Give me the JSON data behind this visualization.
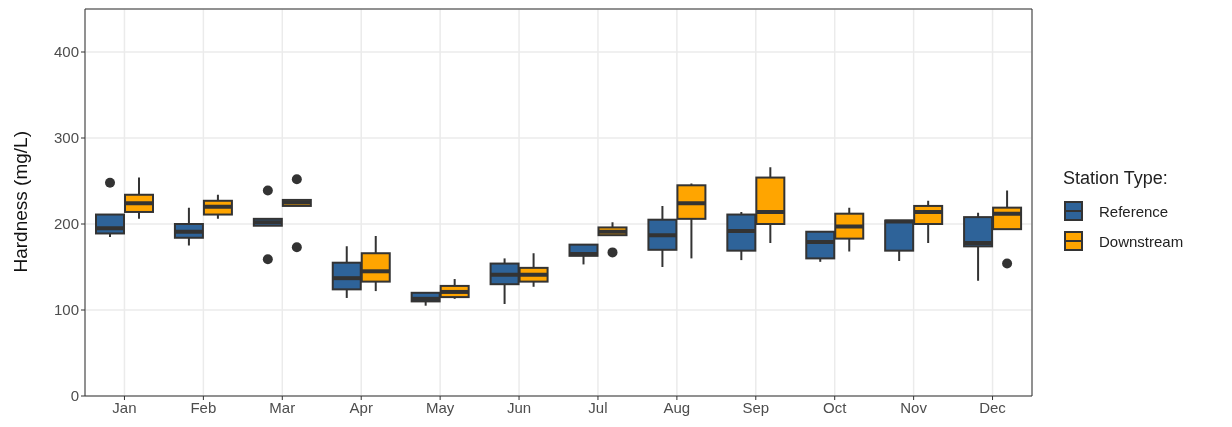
{
  "chart_data": {
    "type": "box",
    "ylabel": "Hardness (mg/L)",
    "legend_title": "Station Type:",
    "legend": "right",
    "grid": true,
    "categories": [
      "Jan",
      "Feb",
      "Mar",
      "Apr",
      "May",
      "Jun",
      "Jul",
      "Aug",
      "Sep",
      "Oct",
      "Nov",
      "Dec"
    ],
    "ylim": [
      0,
      450
    ],
    "yticks": [
      0,
      100,
      200,
      300,
      400
    ],
    "series": [
      {
        "name": "Reference",
        "color": "#2e6399",
        "boxes": [
          {
            "low": 185,
            "q1": 189,
            "median": 195,
            "q3": 211,
            "high": 211,
            "outliers": [
              248
            ]
          },
          {
            "low": 175,
            "q1": 184,
            "median": 191,
            "q3": 200,
            "high": 219
          },
          {
            "low": 198,
            "q1": 198,
            "median": 202,
            "q3": 206,
            "high": 206,
            "outliers": [
              239,
              159
            ]
          },
          {
            "low": 114,
            "q1": 124,
            "median": 137,
            "q3": 155,
            "high": 174
          },
          {
            "low": 105,
            "q1": 110,
            "median": 113,
            "q3": 120,
            "high": 120
          },
          {
            "low": 107,
            "q1": 130,
            "median": 141,
            "q3": 154,
            "high": 160
          },
          {
            "low": 153,
            "q1": 163,
            "median": 165,
            "q3": 176,
            "high": 176
          },
          {
            "low": 150,
            "q1": 170,
            "median": 187,
            "q3": 205,
            "high": 221
          },
          {
            "low": 158,
            "q1": 169,
            "median": 192,
            "q3": 211,
            "high": 214
          },
          {
            "low": 156,
            "q1": 160,
            "median": 179,
            "q3": 191,
            "high": 191
          },
          {
            "low": 157,
            "q1": 169,
            "median": 203,
            "q3": 204,
            "high": 204
          },
          {
            "low": 134,
            "q1": 174,
            "median": 178,
            "q3": 208,
            "high": 213
          }
        ]
      },
      {
        "name": "Downstream",
        "color": "#ffa500",
        "boxes": [
          {
            "low": 206,
            "q1": 214,
            "median": 224,
            "q3": 234,
            "high": 254
          },
          {
            "low": 206,
            "q1": 211,
            "median": 220,
            "q3": 227,
            "high": 234
          },
          {
            "low": 221,
            "q1": 221,
            "median": 225,
            "q3": 228,
            "high": 228,
            "outliers": [
              252,
              173
            ]
          },
          {
            "low": 122,
            "q1": 133,
            "median": 145,
            "q3": 166,
            "high": 186
          },
          {
            "low": 113,
            "q1": 115,
            "median": 121,
            "q3": 128,
            "high": 136
          },
          {
            "low": 127,
            "q1": 133,
            "median": 141,
            "q3": 149,
            "high": 166
          },
          {
            "low": 187,
            "q1": 187,
            "median": 191,
            "q3": 196,
            "high": 202,
            "outliers": [
              167
            ]
          },
          {
            "low": 160,
            "q1": 206,
            "median": 224,
            "q3": 245,
            "high": 247
          },
          {
            "low": 178,
            "q1": 200,
            "median": 214,
            "q3": 254,
            "high": 266
          },
          {
            "low": 168,
            "q1": 183,
            "median": 197,
            "q3": 212,
            "high": 219
          },
          {
            "low": 178,
            "q1": 200,
            "median": 214,
            "q3": 221,
            "high": 227
          },
          {
            "low": 194,
            "q1": 194,
            "median": 212,
            "q3": 219,
            "high": 239,
            "outliers": [
              154
            ]
          }
        ]
      }
    ]
  }
}
